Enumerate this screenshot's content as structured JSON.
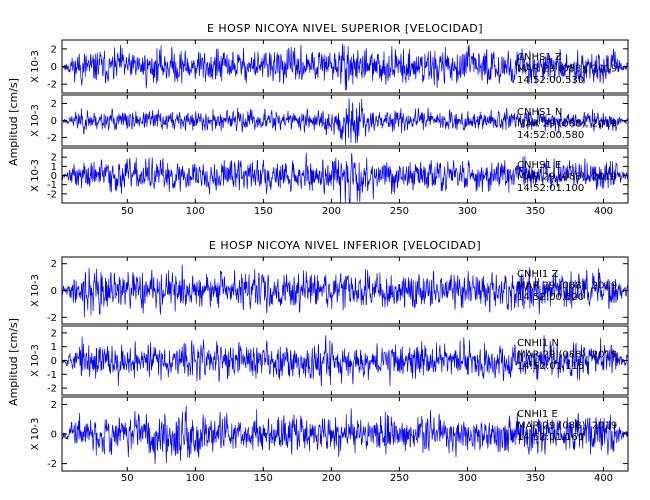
{
  "colors": {
    "trace": "#0000ff",
    "axis": "#000000",
    "background": "#ffffff"
  },
  "chart_data": [
    {
      "type": "line",
      "title": "E HOSP NICOYA NIVEL SUPERIOR [VELOCIDAD]",
      "ylabel": "Amplitud [cm/s]",
      "xlim": [
        2,
        418
      ],
      "xticks": [
        50,
        100,
        150,
        200,
        250,
        300,
        350,
        400
      ],
      "panels": [
        {
          "ylim": [
            -3,
            3
          ],
          "yticks": [
            -2,
            0,
            2
          ],
          "scale_label": "X 10-3",
          "annotation": [
            "CNHS1 Z",
            "MAR 29 (088), 2019",
            "14:52:00.530"
          ],
          "noise": {
            "amplitude": 1.4,
            "burst_center": 215,
            "burst_gain": 0.2,
            "seed": 11
          }
        },
        {
          "ylim": [
            -3,
            3
          ],
          "yticks": [
            -2,
            0,
            2
          ],
          "scale_label": "X 10-3",
          "annotation": [
            "CNHS1 N",
            "MAR 29 (088), 2019",
            "14:52:00.580"
          ],
          "noise": {
            "amplitude": 0.9,
            "burst_center": 212,
            "burst_gain": 1.6,
            "seed": 23
          }
        },
        {
          "ylim": [
            -3,
            3
          ],
          "yticks": [
            -2,
            -1,
            0,
            1,
            2
          ],
          "scale_label": "X 10-3",
          "annotation": [
            "CNHS1 E",
            "MAR 29 (088), 2019",
            "14:52:01.100"
          ],
          "noise": {
            "amplitude": 1.3,
            "burst_center": 213,
            "burst_gain": 0.8,
            "seed": 37
          }
        }
      ]
    },
    {
      "type": "line",
      "title": "E HOSP NICOYA NIVEL INFERIOR [VELOCIDAD]",
      "ylabel": "Amplitud [cm/s]",
      "xlim": [
        2,
        418
      ],
      "xticks": [
        50,
        100,
        150,
        200,
        250,
        300,
        350,
        400
      ],
      "panels": [
        {
          "ylim": [
            -2.5,
            2.5
          ],
          "yticks": [
            -2,
            0,
            2
          ],
          "scale_label": "X 10-3",
          "annotation": [
            "CNHI1 Z",
            "MAR 29 (088), 2019",
            "14:52:00.520"
          ],
          "noise": {
            "amplitude": 1.0,
            "burst_center": 30,
            "burst_gain": 0.5,
            "seed": 41
          }
        },
        {
          "ylim": [
            -2.5,
            2.5
          ],
          "yticks": [
            -2,
            -1,
            0,
            1,
            2
          ],
          "scale_label": "X 10-3",
          "annotation": [
            "CNHI1 N",
            "MAR 29 (088), 2019",
            "14:52:01.115"
          ],
          "noise": {
            "amplitude": 0.95,
            "burst_center": 200,
            "burst_gain": 0.4,
            "seed": 53
          }
        },
        {
          "ylim": [
            -2.5,
            2.5
          ],
          "yticks": [
            -2,
            0,
            2
          ],
          "scale_label": "X 10-3",
          "annotation": [
            "CNHI1 E",
            "MAR 29 (088), 2019",
            "14:52:01.160"
          ],
          "noise": {
            "amplitude": 0.95,
            "burst_center": 90,
            "burst_gain": 0.4,
            "seed": 67
          }
        }
      ]
    }
  ]
}
